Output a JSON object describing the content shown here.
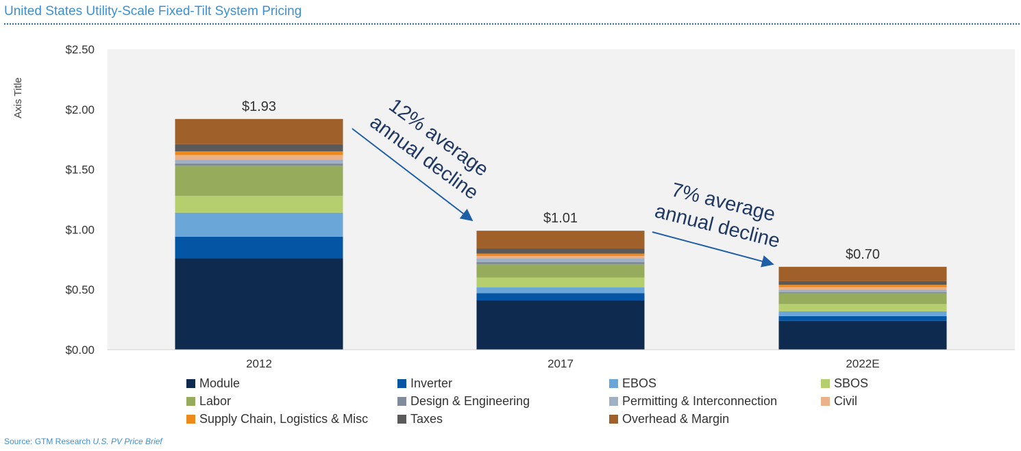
{
  "title": "United States Utility-Scale Fixed-Tilt System Pricing",
  "source": {
    "prefix": "Source: GTM Research ",
    "publication": "U.S. PV Price Brief"
  },
  "chart_data": {
    "type": "bar",
    "stacked": true,
    "categories": [
      "2012",
      "2017",
      "2022E"
    ],
    "ylabel": "Axis Title",
    "ylim": [
      0,
      2.5
    ],
    "yticks": [
      0,
      0.5,
      1.0,
      1.5,
      2.0,
      2.5
    ],
    "ytick_labels": [
      "$0.00",
      "$0.50",
      "$1.00",
      "$1.50",
      "$2.00",
      "$2.50"
    ],
    "totals": [
      "$1.93",
      "$1.01",
      "$0.70"
    ],
    "legend_position": "bottom",
    "plot_background": "#f2f2f2",
    "series": [
      {
        "name": "Module",
        "color": "#0e2a4e",
        "values": [
          0.76,
          0.41,
          0.24
        ]
      },
      {
        "name": "Inverter",
        "color": "#0455a4",
        "values": [
          0.18,
          0.06,
          0.04
        ]
      },
      {
        "name": "EBOS",
        "color": "#6aa7d8",
        "values": [
          0.2,
          0.05,
          0.04
        ]
      },
      {
        "name": "SBOS",
        "color": "#b5cf6f",
        "values": [
          0.14,
          0.08,
          0.06
        ]
      },
      {
        "name": "Labor",
        "color": "#96ab5c",
        "values": [
          0.25,
          0.11,
          0.09
        ]
      },
      {
        "name": "Design & Engineering",
        "color": "#808b9c",
        "values": [
          0.02,
          0.02,
          0.01
        ]
      },
      {
        "name": "Permitting & Interconnection",
        "color": "#9fb0c4",
        "values": [
          0.03,
          0.03,
          0.02
        ]
      },
      {
        "name": "Civil",
        "color": "#ebb28a",
        "values": [
          0.04,
          0.02,
          0.02
        ]
      },
      {
        "name": "Supply Chain, Logistics & Misc",
        "color": "#ee8a1c",
        "values": [
          0.03,
          0.02,
          0.02
        ]
      },
      {
        "name": "Taxes",
        "color": "#5a5a5a",
        "values": [
          0.06,
          0.04,
          0.03
        ]
      },
      {
        "name": "Overhead & Margin",
        "color": "#a0602a",
        "values": [
          0.21,
          0.15,
          0.12
        ]
      }
    ],
    "annotations": [
      {
        "text_lines": [
          "12% average",
          "annual decline"
        ]
      },
      {
        "text_lines": [
          "7% average",
          "annual decline"
        ]
      }
    ]
  }
}
